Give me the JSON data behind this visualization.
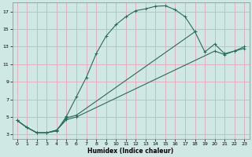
{
  "xlabel": "Humidex (Indice chaleur)",
  "bg_color": "#cfe8e4",
  "grid_color": "#e0b0c0",
  "line_color": "#2a6b5a",
  "xlim": [
    -0.5,
    23.5
  ],
  "ylim": [
    2.5,
    18
  ],
  "xticks": [
    0,
    1,
    2,
    3,
    4,
    5,
    6,
    7,
    8,
    9,
    10,
    11,
    12,
    13,
    14,
    15,
    16,
    17,
    18,
    19,
    20,
    21,
    22,
    23
  ],
  "yticks": [
    3,
    5,
    7,
    9,
    11,
    13,
    15,
    17
  ],
  "line1_x": [
    0,
    1,
    2,
    3,
    4,
    5,
    6,
    7,
    8,
    9,
    10,
    11,
    12,
    13,
    14,
    15,
    16,
    17,
    18
  ],
  "line1_y": [
    4.6,
    3.8,
    3.2,
    3.2,
    3.4,
    5.1,
    7.3,
    9.5,
    12.2,
    14.2,
    15.5,
    16.4,
    17.1,
    17.3,
    17.6,
    17.65,
    17.2,
    16.4,
    14.7
  ],
  "line2_x": [
    0,
    1,
    2,
    3,
    4,
    5,
    6,
    18,
    19,
    20,
    21,
    22,
    23
  ],
  "line2_y": [
    4.6,
    3.8,
    3.2,
    3.2,
    3.5,
    4.9,
    5.2,
    14.7,
    12.4,
    13.3,
    12.2,
    12.5,
    13.0
  ],
  "line3_x": [
    0,
    1,
    2,
    3,
    4,
    5,
    6,
    20,
    21,
    22,
    23
  ],
  "line3_y": [
    4.6,
    3.8,
    3.2,
    3.2,
    3.5,
    4.7,
    5.0,
    12.5,
    12.1,
    12.5,
    12.8
  ]
}
